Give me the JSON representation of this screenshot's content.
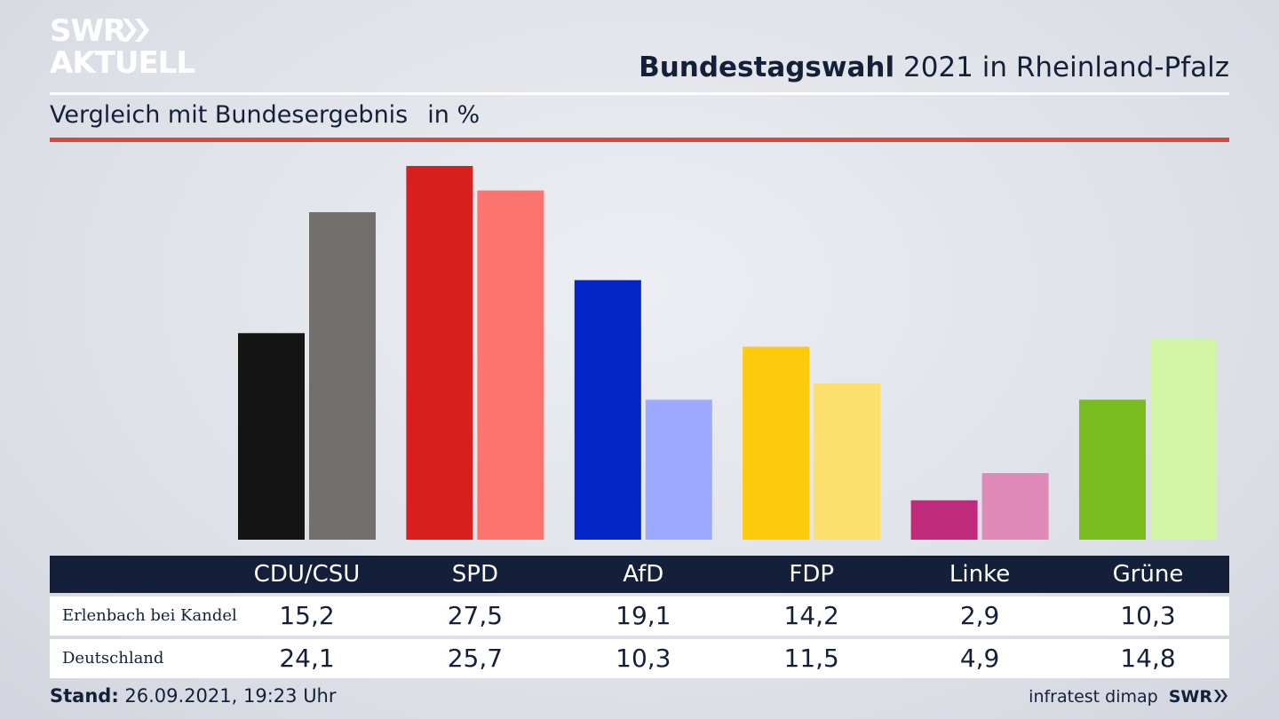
{
  "logo": {
    "line1": "SWR",
    "line2": "AKTUELL"
  },
  "header": {
    "title_bold": "Bundestagswahl",
    "title_rest": "2021 in Rheinland-Pfalz",
    "subtitle": "Vergleich mit Bundesergebnis",
    "unit": "in %"
  },
  "footer": {
    "stand_label": "Stand:",
    "stand_value": "26.09.2021, 19:23 Uhr",
    "source": "infratest dimap",
    "source_logo": "SWR"
  },
  "table": {
    "rows": [
      {
        "label": "Erlenbach bei Kandel",
        "values": [
          "15,2",
          "27,5",
          "19,1",
          "14,2",
          "2,9",
          "10,3"
        ]
      },
      {
        "label": "Deutschland",
        "values": [
          "24,1",
          "25,7",
          "10,3",
          "11,5",
          "4,9",
          "14,8"
        ]
      }
    ]
  },
  "chart_data": {
    "type": "bar",
    "categories": [
      "CDU/CSU",
      "SPD",
      "AfD",
      "FDP",
      "Linke",
      "Grüne"
    ],
    "series": [
      {
        "name": "Erlenbach bei Kandel",
        "values": [
          15.2,
          27.5,
          19.1,
          14.2,
          2.9,
          10.3
        ],
        "colors": [
          "#141414",
          "#d71f1f",
          "#0324c6",
          "#fdcb0b",
          "#c02a7a",
          "#78bc1f"
        ]
      },
      {
        "name": "Deutschland",
        "values": [
          24.1,
          25.7,
          10.3,
          11.5,
          4.9,
          14.8
        ],
        "colors": [
          "#72706f",
          "#fd746e",
          "#9daaff",
          "#fce06e",
          "#e08ab9",
          "#d2f5a5"
        ]
      }
    ],
    "ylim": [
      0,
      27.5
    ],
    "grid": false,
    "title": "Vergleich mit Bundesergebnis",
    "ylabel": "in %"
  }
}
